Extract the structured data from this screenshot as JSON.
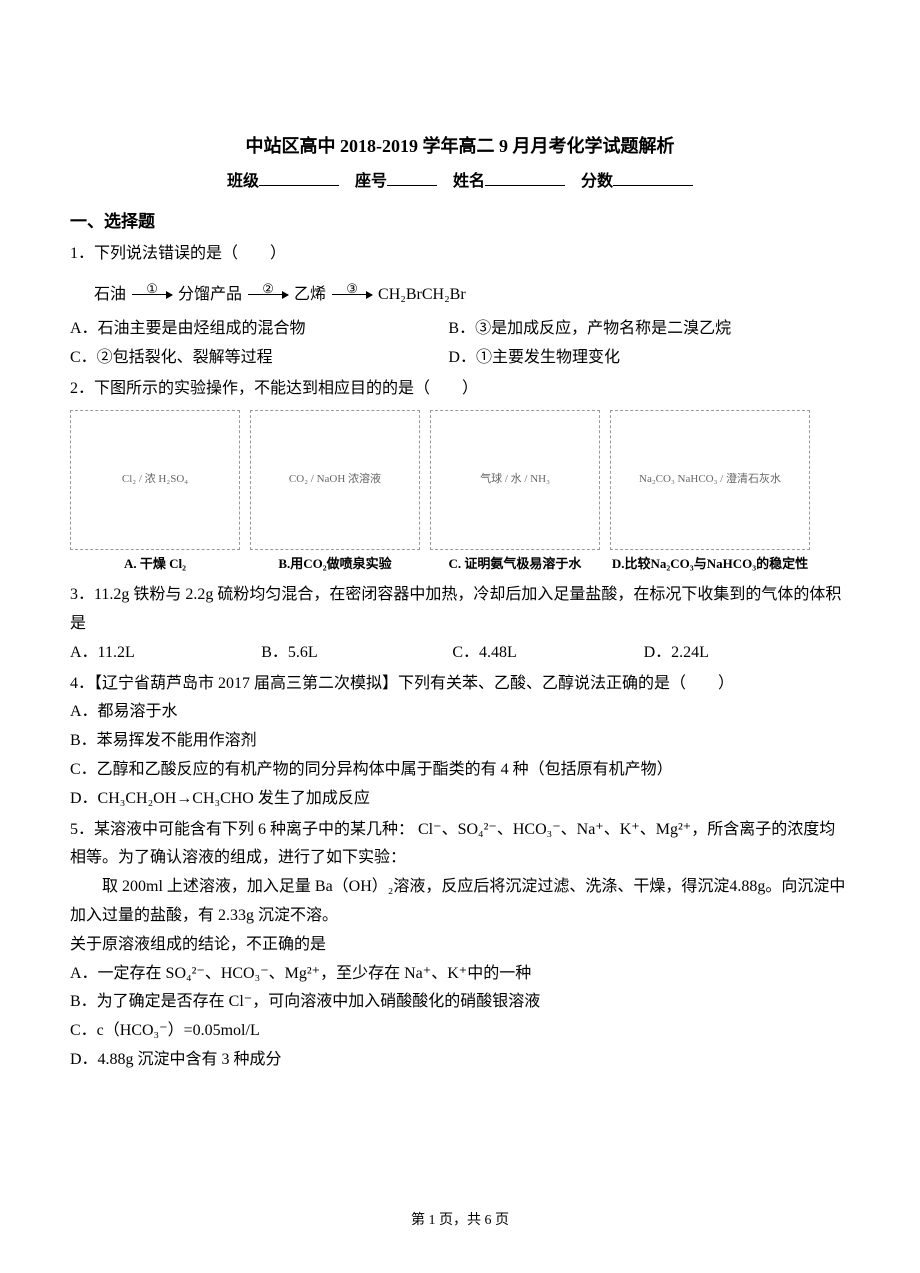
{
  "title": "中站区高中 2018-2019 学年高二 9 月月考化学试题解析",
  "header": {
    "class_label": "班级",
    "seat_label": "座号",
    "name_label": "姓名",
    "score_label": "分数"
  },
  "section1": "一、选择题",
  "q1": {
    "stem": "1．下列说法错误的是（　　）",
    "chain": {
      "s1": "石油",
      "s2": "分馏产品",
      "s3": "乙烯",
      "s4": "CH₂BrCH₂Br",
      "n1": "①",
      "n2": "②",
      "n3": "③"
    },
    "A": "A．石油主要是由烃组成的混合物",
    "B": "B．③是加成反应，产物名称是二溴乙烷",
    "C": "C．②包括裂化、裂解等过程",
    "D": "D．①主要发生物理变化"
  },
  "q2": {
    "stem": "2．下图所示的实验操作，不能达到相应目的的是（　　）",
    "figA": "A. 干燥 Cl₂",
    "figA_hint": "Cl₂ / 浓 H₂SO₄",
    "figB": "B.用CO₂做喷泉实验",
    "figB_hint": "CO₂ / NaOH 浓溶液",
    "figC": "C. 证明氨气极易溶于水",
    "figC_hint": "气球 / 水 / NH₃",
    "figD": "D.比较Na₂CO₃与NaHCO₃的稳定性",
    "figD_hint": "Na₂CO₃ NaHCO₃ / 澄清石灰水"
  },
  "q3": {
    "stem": "3．11.2g 铁粉与 2.2g 硫粉均匀混合，在密闭容器中加热，冷却后加入足量盐酸，在标况下收集到的气体的体积是",
    "A": "A．11.2L",
    "B": "B．5.6L",
    "C": "C．4.48L",
    "D": "D．2.24L"
  },
  "q4": {
    "stem": "4．【辽宁省葫芦岛市 2017 届高三第二次模拟】下列有关苯、乙酸、乙醇说法正确的是（　　）",
    "A": "A．都易溶于水",
    "B": "B．苯易挥发不能用作溶剂",
    "C": "C．乙醇和乙酸反应的有机产物的同分异构体中属于酯类的有 4 种（包括原有机产物）",
    "D": "D．CH₃CH₂OH→CH₃CHO 发生了加成反应"
  },
  "q5": {
    "stem": "5．某溶液中可能含有下列 6 种离子中的某几种： Cl⁻、SO₄²⁻、HCO₃⁻、Na⁺、K⁺、Mg²⁺，所含离子的浓度均相等。为了确认溶液的组成，进行了如下实验：",
    "body1": "　　取 200ml 上述溶液，加入足量 Ba（OH）₂溶液，反应后将沉淀过滤、洗涤、干燥，得沉淀4.88g。向沉淀中加入过量的盐酸，有 2.33g 沉淀不溶。",
    "body2": "关于原溶液组成的结论，不正确的是",
    "A": "A．一定存在 SO₄²⁻、HCO₃⁻、Mg²⁺，至少存在 Na⁺、K⁺中的一种",
    "B": "B．为了确定是否存在 Cl⁻，可向溶液中加入硝酸酸化的硝酸银溶液",
    "C": "C．c（HCO₃⁻）=0.05mol/L",
    "D": "D．4.88g 沉淀中含有 3 种成分"
  },
  "footer": "第 1 页，共 6 页"
}
